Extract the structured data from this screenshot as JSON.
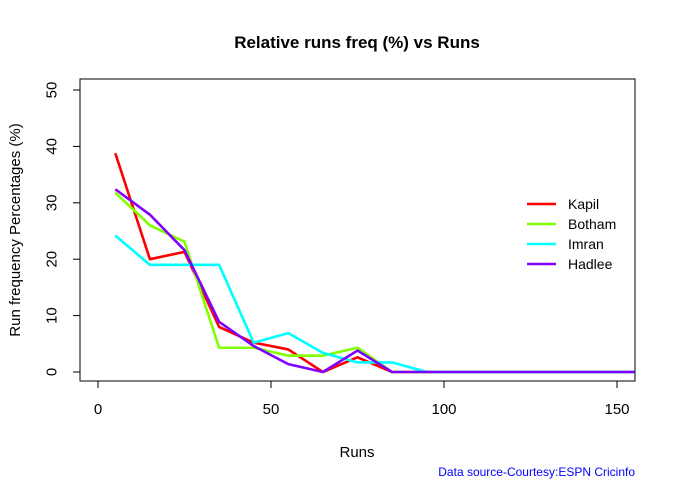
{
  "chart_data": {
    "type": "line",
    "title": "Relative runs freq (%) vs Runs",
    "xlabel": "Runs",
    "ylabel": "Run frequency Percentages (%)",
    "xlim": [
      0,
      155
    ],
    "ylim": [
      0,
      50
    ],
    "xticks": [
      0,
      50,
      100,
      150
    ],
    "yticks": [
      0,
      10,
      20,
      30,
      40,
      50
    ],
    "x": [
      5,
      15,
      25,
      35,
      45,
      55,
      65,
      75,
      85,
      95,
      105,
      115,
      125,
      135,
      145,
      155
    ],
    "series": [
      {
        "name": "Kapil",
        "color": "#ff0000",
        "values": [
          38.8,
          20.0,
          21.3,
          8.0,
          5.2,
          4.0,
          0.0,
          2.6,
          0.0,
          0.0,
          0.0,
          0.0,
          0.0,
          0.0,
          0.0,
          0.0
        ]
      },
      {
        "name": "Botham",
        "color": "#80ff00",
        "values": [
          31.8,
          26.0,
          23.1,
          4.3,
          4.3,
          2.9,
          2.9,
          4.3,
          0.0,
          0.0,
          0.0,
          0.0,
          0.0,
          0.0,
          0.0,
          0.0
        ]
      },
      {
        "name": "Imran",
        "color": "#00ffff",
        "values": [
          24.2,
          19.0,
          19.0,
          19.0,
          5.2,
          6.9,
          3.4,
          1.7,
          1.7,
          0.0,
          0.0,
          0.0,
          0.0,
          0.0,
          0.0,
          0.0
        ]
      },
      {
        "name": "Hadlee",
        "color": "#8000ff",
        "values": [
          32.4,
          27.9,
          21.6,
          8.9,
          4.6,
          1.4,
          0.0,
          3.8,
          0.0,
          0.0,
          0.0,
          0.0,
          0.0,
          0.0,
          0.0,
          0.0
        ]
      }
    ],
    "legend_position": "right",
    "grid": false
  },
  "source_note": "Data source-Courtesy:ESPN Cricinfo"
}
